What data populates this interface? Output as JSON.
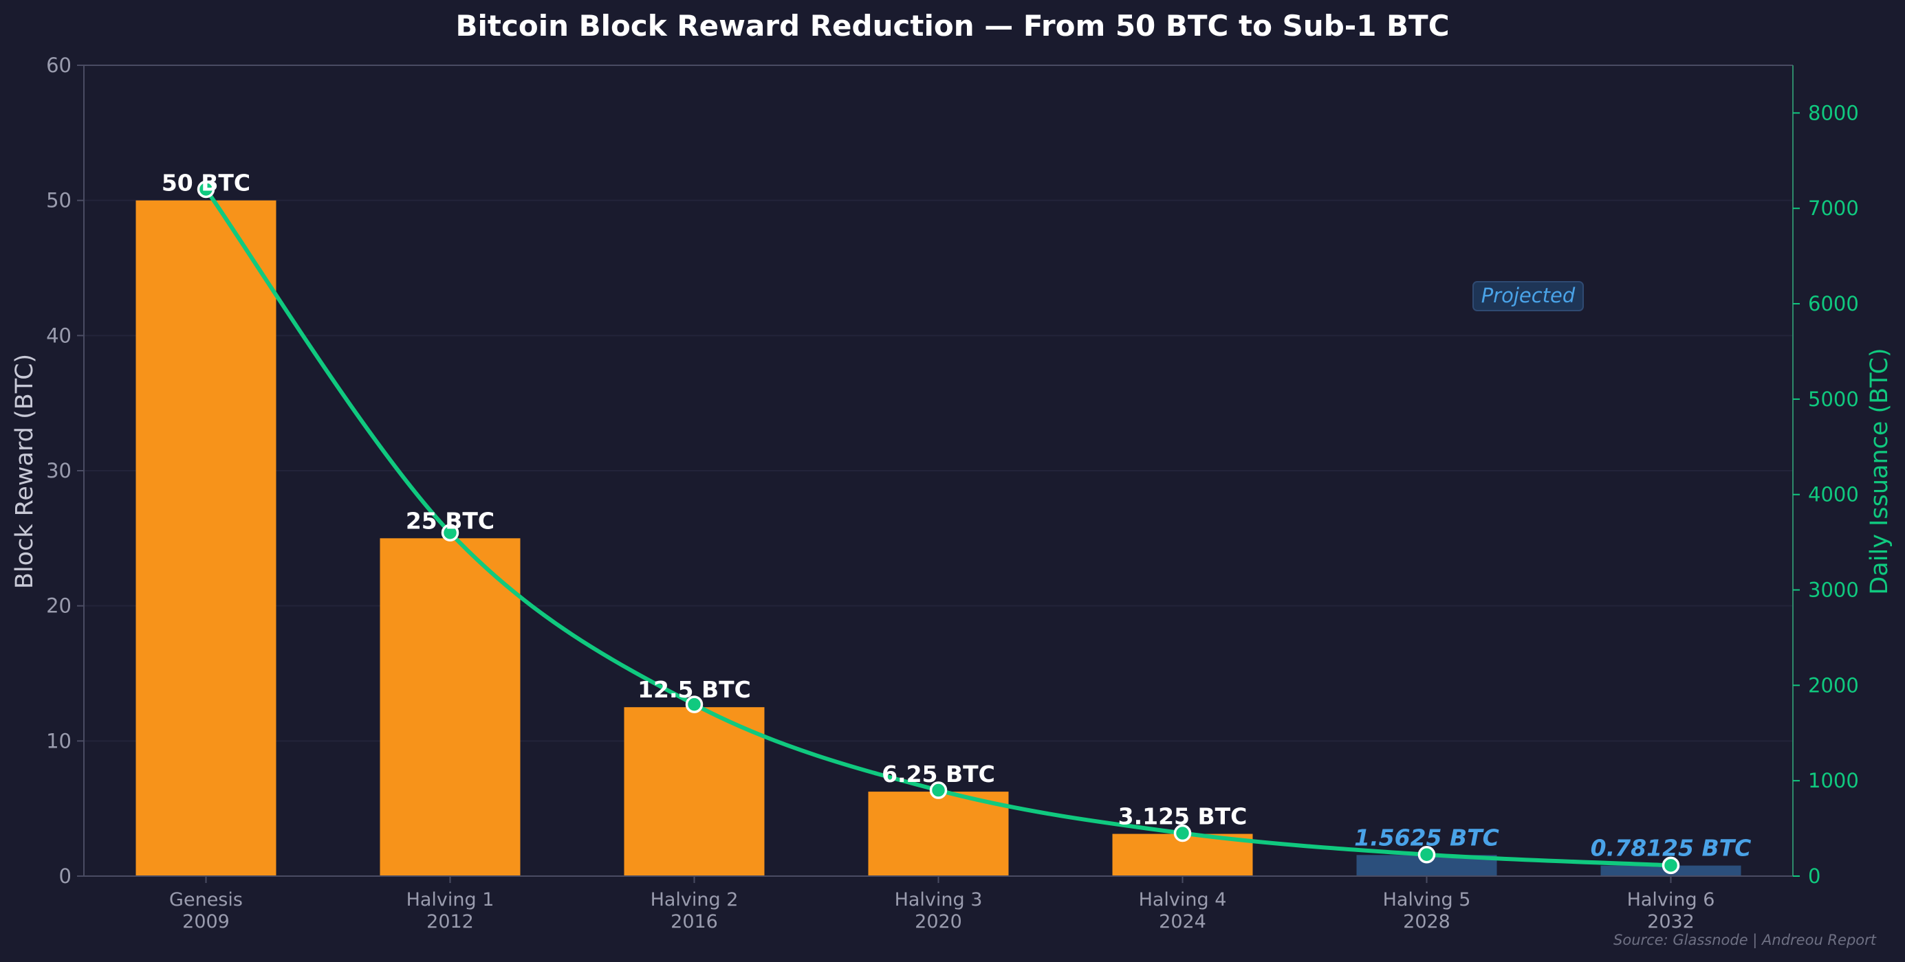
{
  "chart_data": {
    "type": "bar",
    "title": "Bitcoin Block Reward Reduction — From 50 BTC to Sub-1 BTC",
    "categories": [
      [
        "Genesis",
        "2009"
      ],
      [
        "Halving 1",
        "2012"
      ],
      [
        "Halving 2",
        "2016"
      ],
      [
        "Halving 3",
        "2020"
      ],
      [
        "Halving 4",
        "2024"
      ],
      [
        "Halving 5",
        "2028"
      ],
      [
        "Halving 6",
        "2032"
      ]
    ],
    "series": [
      {
        "type": "bar",
        "axis": "left",
        "values": [
          50,
          25,
          12.5,
          6.25,
          3.125,
          1.5625,
          0.78125
        ],
        "labels": [
          "50 BTC",
          "25 BTC",
          "12.5 BTC",
          "6.25 BTC",
          "3.125 BTC",
          "1.5625 BTC",
          "0.78125 BTC"
        ],
        "projected": [
          false,
          false,
          false,
          false,
          false,
          true,
          true
        ]
      },
      {
        "type": "line",
        "axis": "right",
        "values": [
          7200,
          3600,
          1800,
          900,
          450,
          225,
          112.5
        ]
      }
    ],
    "ylabel": "Block Reward (BTC)",
    "ylabel_right": "Daily Issuance (BTC)",
    "ylim": [
      0,
      60
    ],
    "ylim_right": [
      0,
      8500
    ],
    "yticks": [
      0,
      10,
      20,
      30,
      40,
      50,
      60
    ],
    "yticks_right": [
      0,
      1000,
      2000,
      3000,
      4000,
      5000,
      6000,
      7000,
      8000
    ],
    "grid": true,
    "annotation": "Projected",
    "source": "Source: Glassnode  |  Andreou Report",
    "colors": {
      "background": "#1a1b2e",
      "bar_actual": "#f7931a",
      "bar_projected": "#2b4f7c",
      "label_actual": "#ffffff",
      "label_projected": "#4aa3e8",
      "line": "#10c97f",
      "right_axis": "#10c97f",
      "left_axis_text": "#9a9cae",
      "spine": "#4a4c63",
      "grid": "#23243a"
    }
  }
}
